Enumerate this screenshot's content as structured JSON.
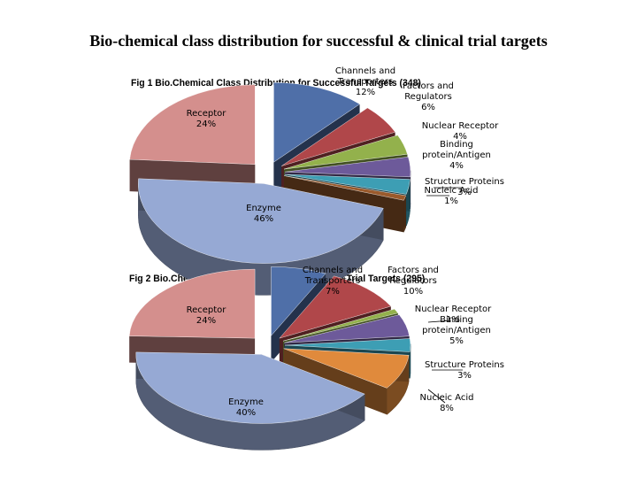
{
  "page": {
    "title": "Bio-chemical class distribution for successful & clinical trial targets"
  },
  "chart_data": [
    {
      "type": "pie",
      "title": "Fig 1 Bio.Chemical Class Distribution for Successful Targets (348)",
      "three_d": true,
      "categories": [
        "Channels and Transporters",
        "Factors and Regulators",
        "Nuclear Receptor",
        "Binding protein/Antigen",
        "Structure Proteins",
        "Nucleic Acid",
        "Enzyme",
        "Receptor"
      ],
      "values": [
        12,
        6,
        4,
        4,
        3,
        1,
        46,
        24
      ],
      "labels": [
        "Channels and\nTransporters\n12%",
        "Factors and\nRegulators\n6%",
        "Nuclear Receptor\n4%",
        "Binding\nprotein/Antigen\n4%",
        "Structure Proteins\n3%",
        "Nucleic Acid\n1%",
        "Enzyme\n46%",
        "Receptor\n24%"
      ],
      "colors": [
        "#4f6fa8",
        "#b0474a",
        "#93b14c",
        "#6d5a9a",
        "#3d9eb4",
        "#9a5a2c",
        "#96a9d4",
        "#d48f8d"
      ],
      "legend": "none"
    },
    {
      "type": "pie",
      "title": "Fig 2 Bio.Chemical Class Distribution for Clinical Trial Targets (295)",
      "three_d": true,
      "categories": [
        "Channels and Transporters",
        "Factors and Regulators",
        "Nuclear Receptor",
        "Binding protein/Antigen",
        "Structure Proteins",
        "Nucleic Acid",
        "Enzyme",
        "Receptor"
      ],
      "values": [
        7,
        10,
        1,
        5,
        3,
        8,
        40,
        24
      ],
      "labels": [
        "Channels and\nTransporters\n7%",
        "Factors and\nRegulators\n10%",
        "Nuclear Receptor\n1%",
        "Binding\nprotein/Antigen\n5%",
        "Structure Proteins\n3%",
        "Nucleic Acid\n8%",
        "Enzyme\n40%",
        "Receptor\n24%"
      ],
      "colors": [
        "#4f6fa8",
        "#b0474a",
        "#93b14c",
        "#6d5a9a",
        "#3d9eb4",
        "#e08a3c",
        "#96a9d4",
        "#d48f8d"
      ],
      "legend": "none"
    }
  ]
}
